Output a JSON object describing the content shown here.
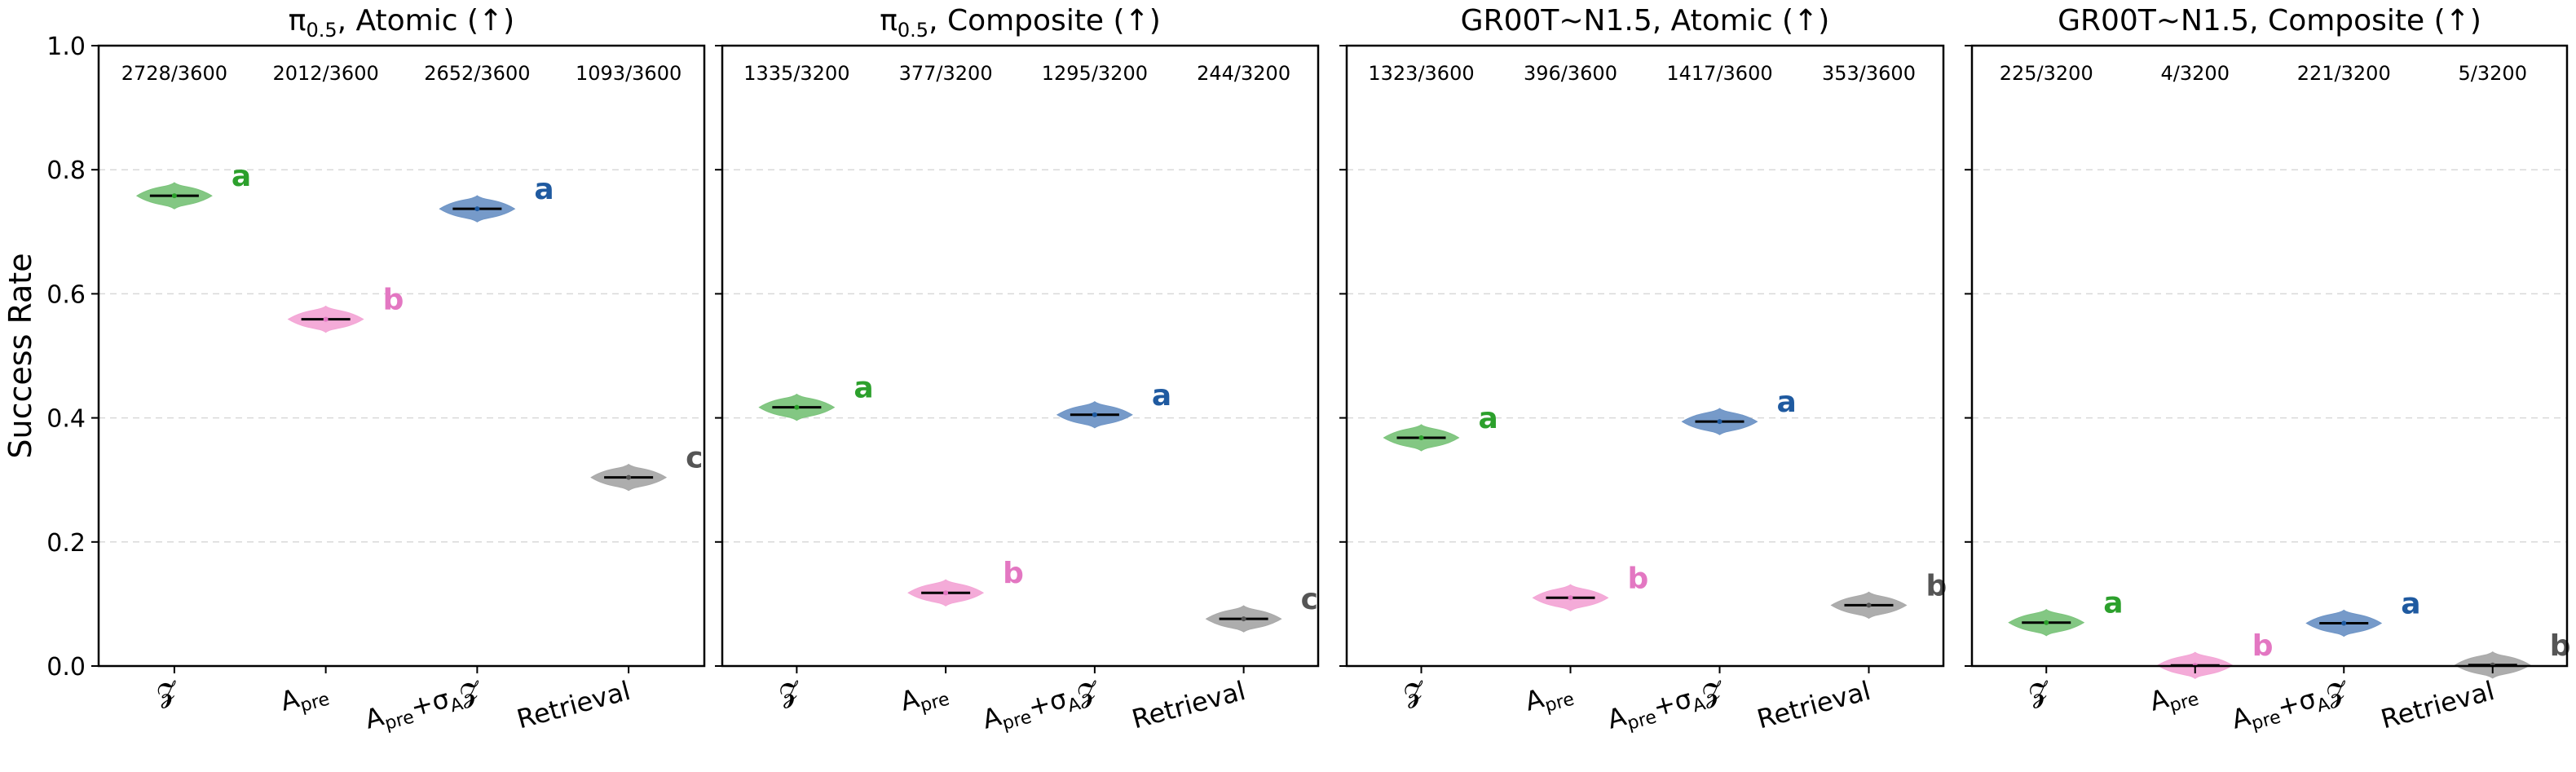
{
  "ylabel": "Success Rate",
  "y_ticks": [
    "0.0",
    "0.2",
    "0.4",
    "0.6",
    "0.8",
    "1.0"
  ],
  "x_tick_labels": [
    {
      "main": "𝓩",
      "sub": "",
      "rest": ""
    },
    {
      "main": "A",
      "sub": "pre",
      "rest": ""
    },
    {
      "main": "A",
      "sub": "pre",
      "rest": "+σ",
      "sub2": "A",
      "rest2": "𝓩"
    },
    {
      "main": "Retrieval",
      "sub": "",
      "rest": ""
    }
  ],
  "series_colors": [
    "#2ca02c",
    "#e377c2",
    "#1f5aa0",
    "#555555"
  ],
  "violin_fill": [
    "#7cc47c",
    "#f3a6d6",
    "#6f95c6",
    "#a9a9a9"
  ],
  "chart_data": [
    {
      "type": "violin",
      "title_main": "π",
      "title_sub": "0.5",
      "title_rest": ", Atomic (↑)",
      "ylim": [
        0,
        1
      ],
      "grid": "dashed-horizontal",
      "counts": [
        "2728/3600",
        "2012/3600",
        "2652/3600",
        "1093/3600"
      ],
      "values": [
        0.758,
        0.559,
        0.737,
        0.304
      ],
      "letters": [
        "a",
        "b",
        "a",
        "c"
      ]
    },
    {
      "type": "violin",
      "title_main": "π",
      "title_sub": "0.5",
      "title_rest": ", Composite (↑)",
      "ylim": [
        0,
        1
      ],
      "grid": "dashed-horizontal",
      "counts": [
        "1335/3200",
        "377/3200",
        "1295/3200",
        "244/3200"
      ],
      "values": [
        0.417,
        0.118,
        0.405,
        0.076
      ],
      "letters": [
        "a",
        "b",
        "a",
        "c"
      ]
    },
    {
      "type": "violin",
      "title_main": "GR00T~N1.5, Atomic (↑)",
      "title_sub": "",
      "title_rest": "",
      "ylim": [
        0,
        1
      ],
      "grid": "dashed-horizontal",
      "counts": [
        "1323/3600",
        "396/3600",
        "1417/3600",
        "353/3600"
      ],
      "values": [
        0.368,
        0.11,
        0.394,
        0.098
      ],
      "letters": [
        "a",
        "b",
        "a",
        "b"
      ]
    },
    {
      "type": "violin",
      "title_main": "GR00T~N1.5, Composite (↑)",
      "title_sub": "",
      "title_rest": "",
      "ylim": [
        0,
        1
      ],
      "grid": "dashed-horizontal",
      "counts": [
        "225/3200",
        "4/3200",
        "221/3200",
        "5/3200"
      ],
      "values": [
        0.07,
        0.001,
        0.069,
        0.0016
      ],
      "letters": [
        "a",
        "b",
        "a",
        "b"
      ]
    }
  ]
}
